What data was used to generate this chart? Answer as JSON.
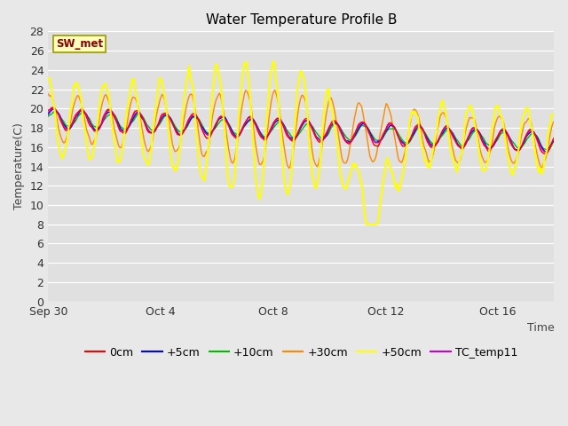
{
  "title": "Water Temperature Profile B",
  "xlabel": "Time",
  "ylabel": "Temperature(C)",
  "ylim": [
    0,
    28
  ],
  "yticks": [
    0,
    2,
    4,
    6,
    8,
    10,
    12,
    14,
    16,
    18,
    20,
    22,
    24,
    26,
    28
  ],
  "x_tick_labels": [
    "Sep 30",
    "Oct 4",
    "Oct 8",
    "Oct 12",
    "Oct 16"
  ],
  "annotation": "SW_met",
  "fig_facecolor": "#e8e8e8",
  "ax_facecolor": "#e0e0e0",
  "grid_color": "#ffffff",
  "series_order": [
    "0cm",
    "+5cm",
    "+10cm",
    "+30cm",
    "+50cm",
    "TC_temp11"
  ],
  "series": {
    "0cm": {
      "color": "#ff0000",
      "lw": 1.0,
      "zorder": 5
    },
    "+5cm": {
      "color": "#0000ff",
      "lw": 1.0,
      "zorder": 4
    },
    "+10cm": {
      "color": "#00bb00",
      "lw": 1.0,
      "zorder": 3
    },
    "+30cm": {
      "color": "#ff8800",
      "lw": 1.0,
      "zorder": 2
    },
    "+50cm": {
      "color": "#ffff00",
      "lw": 1.5,
      "zorder": 6
    },
    "TC_temp11": {
      "color": "#cc00cc",
      "lw": 1.0,
      "zorder": 4
    }
  },
  "days_total": 18,
  "tick_days": [
    0,
    4,
    8,
    12,
    16
  ],
  "n_points": 432,
  "seed": 7
}
